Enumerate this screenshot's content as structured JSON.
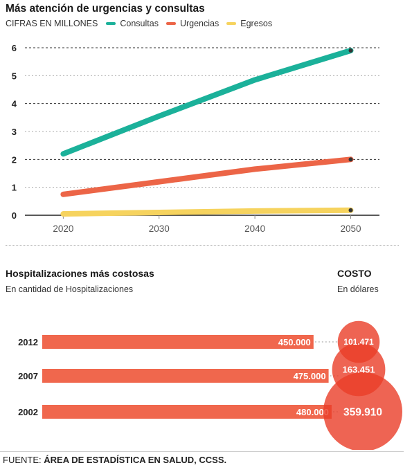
{
  "line_chart": {
    "title": "Más atención de urgencias y consultas",
    "units": "CIFRAS EN MILLONES"
  },
  "bar_chart": {
    "title": "Hospitalizaciones más costosas",
    "subtitle": "En cantidad de Hospitalizaciones",
    "cost_title": "COSTO",
    "cost_subtitle": "En dólares"
  },
  "footer": {
    "label": "FUENTE:",
    "source": "ÁREA DE ESTADÍSTICA EN SALUD, CCSS."
  },
  "chart_data": [
    {
      "type": "line",
      "title": "Más atención de urgencias y consultas",
      "ylabel": "CIFRAS EN MILLONES",
      "x": [
        2020,
        2030,
        2040,
        2050
      ],
      "xlim": [
        2016,
        2053
      ],
      "ylim": [
        0,
        6
      ],
      "yticks": [
        0,
        1,
        2,
        3,
        4,
        5,
        6
      ],
      "grid": true,
      "legend": "top-left",
      "series": [
        {
          "name": "Consultas",
          "color": "#1bb19a",
          "values": [
            2.2,
            3.55,
            4.85,
            5.9
          ]
        },
        {
          "name": "Urgencias",
          "color": "#ec6547",
          "values": [
            0.75,
            1.2,
            1.65,
            2.0
          ]
        },
        {
          "name": "Egresos",
          "color": "#f6d35e",
          "values": [
            0.05,
            0.1,
            0.15,
            0.18
          ]
        }
      ]
    },
    {
      "type": "bar",
      "orientation": "horizontal",
      "title": "Hospitalizaciones más costosas",
      "subtitle": "En cantidad de Hospitalizaciones",
      "color": "#f0674d",
      "xlim": [
        0,
        580000
      ],
      "categories": [
        "2012",
        "2007",
        "2002"
      ],
      "values": [
        450000,
        475000,
        480000
      ],
      "value_labels": [
        "450.000",
        "475.000",
        "480.000"
      ],
      "cost": {
        "title": "COSTO",
        "subtitle": "En dólares",
        "values": [
          101471,
          163451,
          359910
        ],
        "labels": [
          "101.471",
          "163.451",
          "359.910"
        ]
      }
    }
  ]
}
